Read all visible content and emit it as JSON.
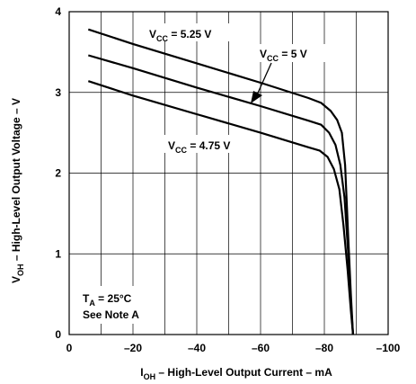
{
  "chart_data": {
    "type": "line",
    "title": "",
    "xlabel": {
      "main": "I",
      "sub": "OH",
      "rest": " – High-Level Output Current – mA"
    },
    "ylabel": {
      "main": "V",
      "sub": "OH",
      "rest": " – High-Level Output Voltage – V"
    },
    "xlim": [
      0,
      -100
    ],
    "ylim": [
      0,
      4
    ],
    "x_ticks": [
      0,
      -20,
      -40,
      -60,
      -80,
      -100
    ],
    "x_tick_labels": [
      "0",
      "–20",
      "–40",
      "–60",
      "–80",
      "–100"
    ],
    "y_ticks": [
      0,
      1,
      2,
      3,
      4
    ],
    "y_tick_labels": [
      "0",
      "1",
      "2",
      "3",
      "4"
    ],
    "grid": true,
    "series": [
      {
        "name": "V_CC = 5.25 V",
        "x": [
          -6,
          -20,
          -40,
          -60,
          -75,
          -79,
          -82,
          -84,
          -85.5,
          -86.5,
          -87.5,
          -88.3,
          -89
        ],
        "y": [
          3.78,
          3.6,
          3.36,
          3.12,
          2.93,
          2.87,
          2.77,
          2.66,
          2.5,
          2.1,
          1.2,
          0.5,
          0.0
        ]
      },
      {
        "name": "V_CC = 5 V",
        "x": [
          -6,
          -20,
          -40,
          -60,
          -75,
          -79,
          -81.5,
          -83.5,
          -85,
          -86.3,
          -87.5,
          -88.3,
          -89
        ],
        "y": [
          3.46,
          3.3,
          3.06,
          2.83,
          2.65,
          2.6,
          2.5,
          2.35,
          2.1,
          1.7,
          1.0,
          0.4,
          0.0
        ]
      },
      {
        "name": "V_CC = 4.75 V",
        "x": [
          -6,
          -20,
          -40,
          -60,
          -75,
          -78.5,
          -81,
          -83,
          -84.7,
          -86,
          -87.3,
          -88.3,
          -89
        ],
        "y": [
          3.14,
          2.96,
          2.73,
          2.5,
          2.32,
          2.28,
          2.2,
          2.05,
          1.8,
          1.35,
          0.8,
          0.3,
          0.0
        ]
      }
    ],
    "series_labels": [
      {
        "main": "V",
        "sub": "CC",
        "rest": " = 5.25 V"
      },
      {
        "main": "V",
        "sub": "CC",
        "rest": " = 5 V"
      },
      {
        "main": "V",
        "sub": "CC",
        "rest": " = 4.75 V"
      }
    ],
    "conditions": {
      "temp": {
        "main": "T",
        "sub": "A",
        "rest": " = 25°C"
      },
      "note": "See Note A"
    }
  }
}
